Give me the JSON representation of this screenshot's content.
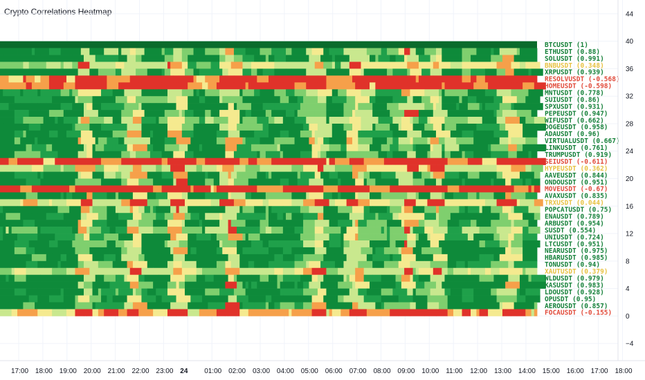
{
  "indicator": {
    "title": "Crypto Correlations Heatmap"
  },
  "colors": {
    "high": "#0e8a3a",
    "mid_high": "#1fa04a",
    "light_green": "#7fcf6e",
    "pale_green": "#c9e88e",
    "yellow": "#f5ea8f",
    "orange": "#f6a04a",
    "red": "#e0322a",
    "btc_row": "#0a6b2c",
    "label_green": "#16813a",
    "label_yellow": "#e8c243",
    "label_red": "#e14b3b"
  },
  "symbols": [
    {
      "label": "BTCUSDT (1)",
      "value": 1
    },
    {
      "label": "ETHUSDT (0.88)",
      "value": 0.88
    },
    {
      "label": "SOLUSDT (0.991)",
      "value": 0.991
    },
    {
      "label": "BNBUSDT (0.348)",
      "value": 0.348
    },
    {
      "label": "XRPUSDT (0.939)",
      "value": 0.939
    },
    {
      "label": "RESOLVUSDT (-0.568)",
      "value": -0.568
    },
    {
      "label": "HOMEUSDT (-0.598)",
      "value": -0.598
    },
    {
      "label": "MNTUSDT (0.778)",
      "value": 0.778
    },
    {
      "label": "SUIUSDT (0.86)",
      "value": 0.86
    },
    {
      "label": "SPXUSDT (0.931)",
      "value": 0.931
    },
    {
      "label": "PEPEUSDT (0.947)",
      "value": 0.947
    },
    {
      "label": "WIFUSDT (0.662)",
      "value": 0.662
    },
    {
      "label": "DOGEUSDT (0.958)",
      "value": 0.958
    },
    {
      "label": "ADAUSDT (0.96)",
      "value": 0.96
    },
    {
      "label": "VIRTUALUSDT (0.667)",
      "value": 0.667
    },
    {
      "label": "LINKUSDT (0.761)",
      "value": 0.761
    },
    {
      "label": "TRUMPUSDT (0.919)",
      "value": 0.919
    },
    {
      "label": "SEIUSDT (-0.611)",
      "value": -0.611
    },
    {
      "label": "HYPEUSDT (0.362)",
      "value": 0.362
    },
    {
      "label": "AAVEUSDT (0.844)",
      "value": 0.844
    },
    {
      "label": "ONDOUSDT (0.951)",
      "value": 0.951
    },
    {
      "label": "MOVEUSDT (-0.67)",
      "value": -0.67
    },
    {
      "label": "AVAXUSDT (0.835)",
      "value": 0.835
    },
    {
      "label": "TRXUSDT (0.044)",
      "value": 0.044
    },
    {
      "label": "POPCATUSDT (0.75)",
      "value": 0.75
    },
    {
      "label": "ENAUSDT (0.789)",
      "value": 0.789
    },
    {
      "label": "ARBUSDT (0.954)",
      "value": 0.954
    },
    {
      "label": "SUSDT (0.554)",
      "value": 0.554
    },
    {
      "label": "UNIUSDT (0.724)",
      "value": 0.724
    },
    {
      "label": "LTCUSDT (0.951)",
      "value": 0.951
    },
    {
      "label": "NEARUSDT (0.975)",
      "value": 0.975
    },
    {
      "label": "HBARUSDT (0.985)",
      "value": 0.985
    },
    {
      "label": "TONUSDT (0.94)",
      "value": 0.94
    },
    {
      "label": "XAUTUSDT (0.379)",
      "value": 0.379
    },
    {
      "label": "WLDUSDT (0.979)",
      "value": 0.979
    },
    {
      "label": "KASUSDT (0.983)",
      "value": 0.983
    },
    {
      "label": "LDOUSDT (0.928)",
      "value": 0.928
    },
    {
      "label": "OPUSDT (0.95)",
      "value": 0.95
    },
    {
      "label": "AEROUSDT (0.857)",
      "value": 0.857
    },
    {
      "label": "FOCAUSDT (-0.155)",
      "value": -0.155
    }
  ],
  "y_axis": {
    "ticks": [
      "44",
      "40",
      "36",
      "32",
      "28",
      "24",
      "20",
      "16",
      "12",
      "8",
      "4",
      "0",
      "−4"
    ],
    "range": [
      -6.5,
      46
    ]
  },
  "x_axis": {
    "ticks": [
      "17:00",
      "18:00",
      "19:00",
      "20:00",
      "21:00",
      "22:00",
      "23:00",
      "24",
      "01:00",
      "02:00",
      "03:00",
      "04:00",
      "05:00",
      "06:00",
      "07:00",
      "08:00",
      "09:00",
      "10:00",
      "11:00",
      "12:00",
      "13:00",
      "14:00",
      "15:00",
      "16:00",
      "17:00",
      "18:00"
    ],
    "bold": "24"
  }
}
